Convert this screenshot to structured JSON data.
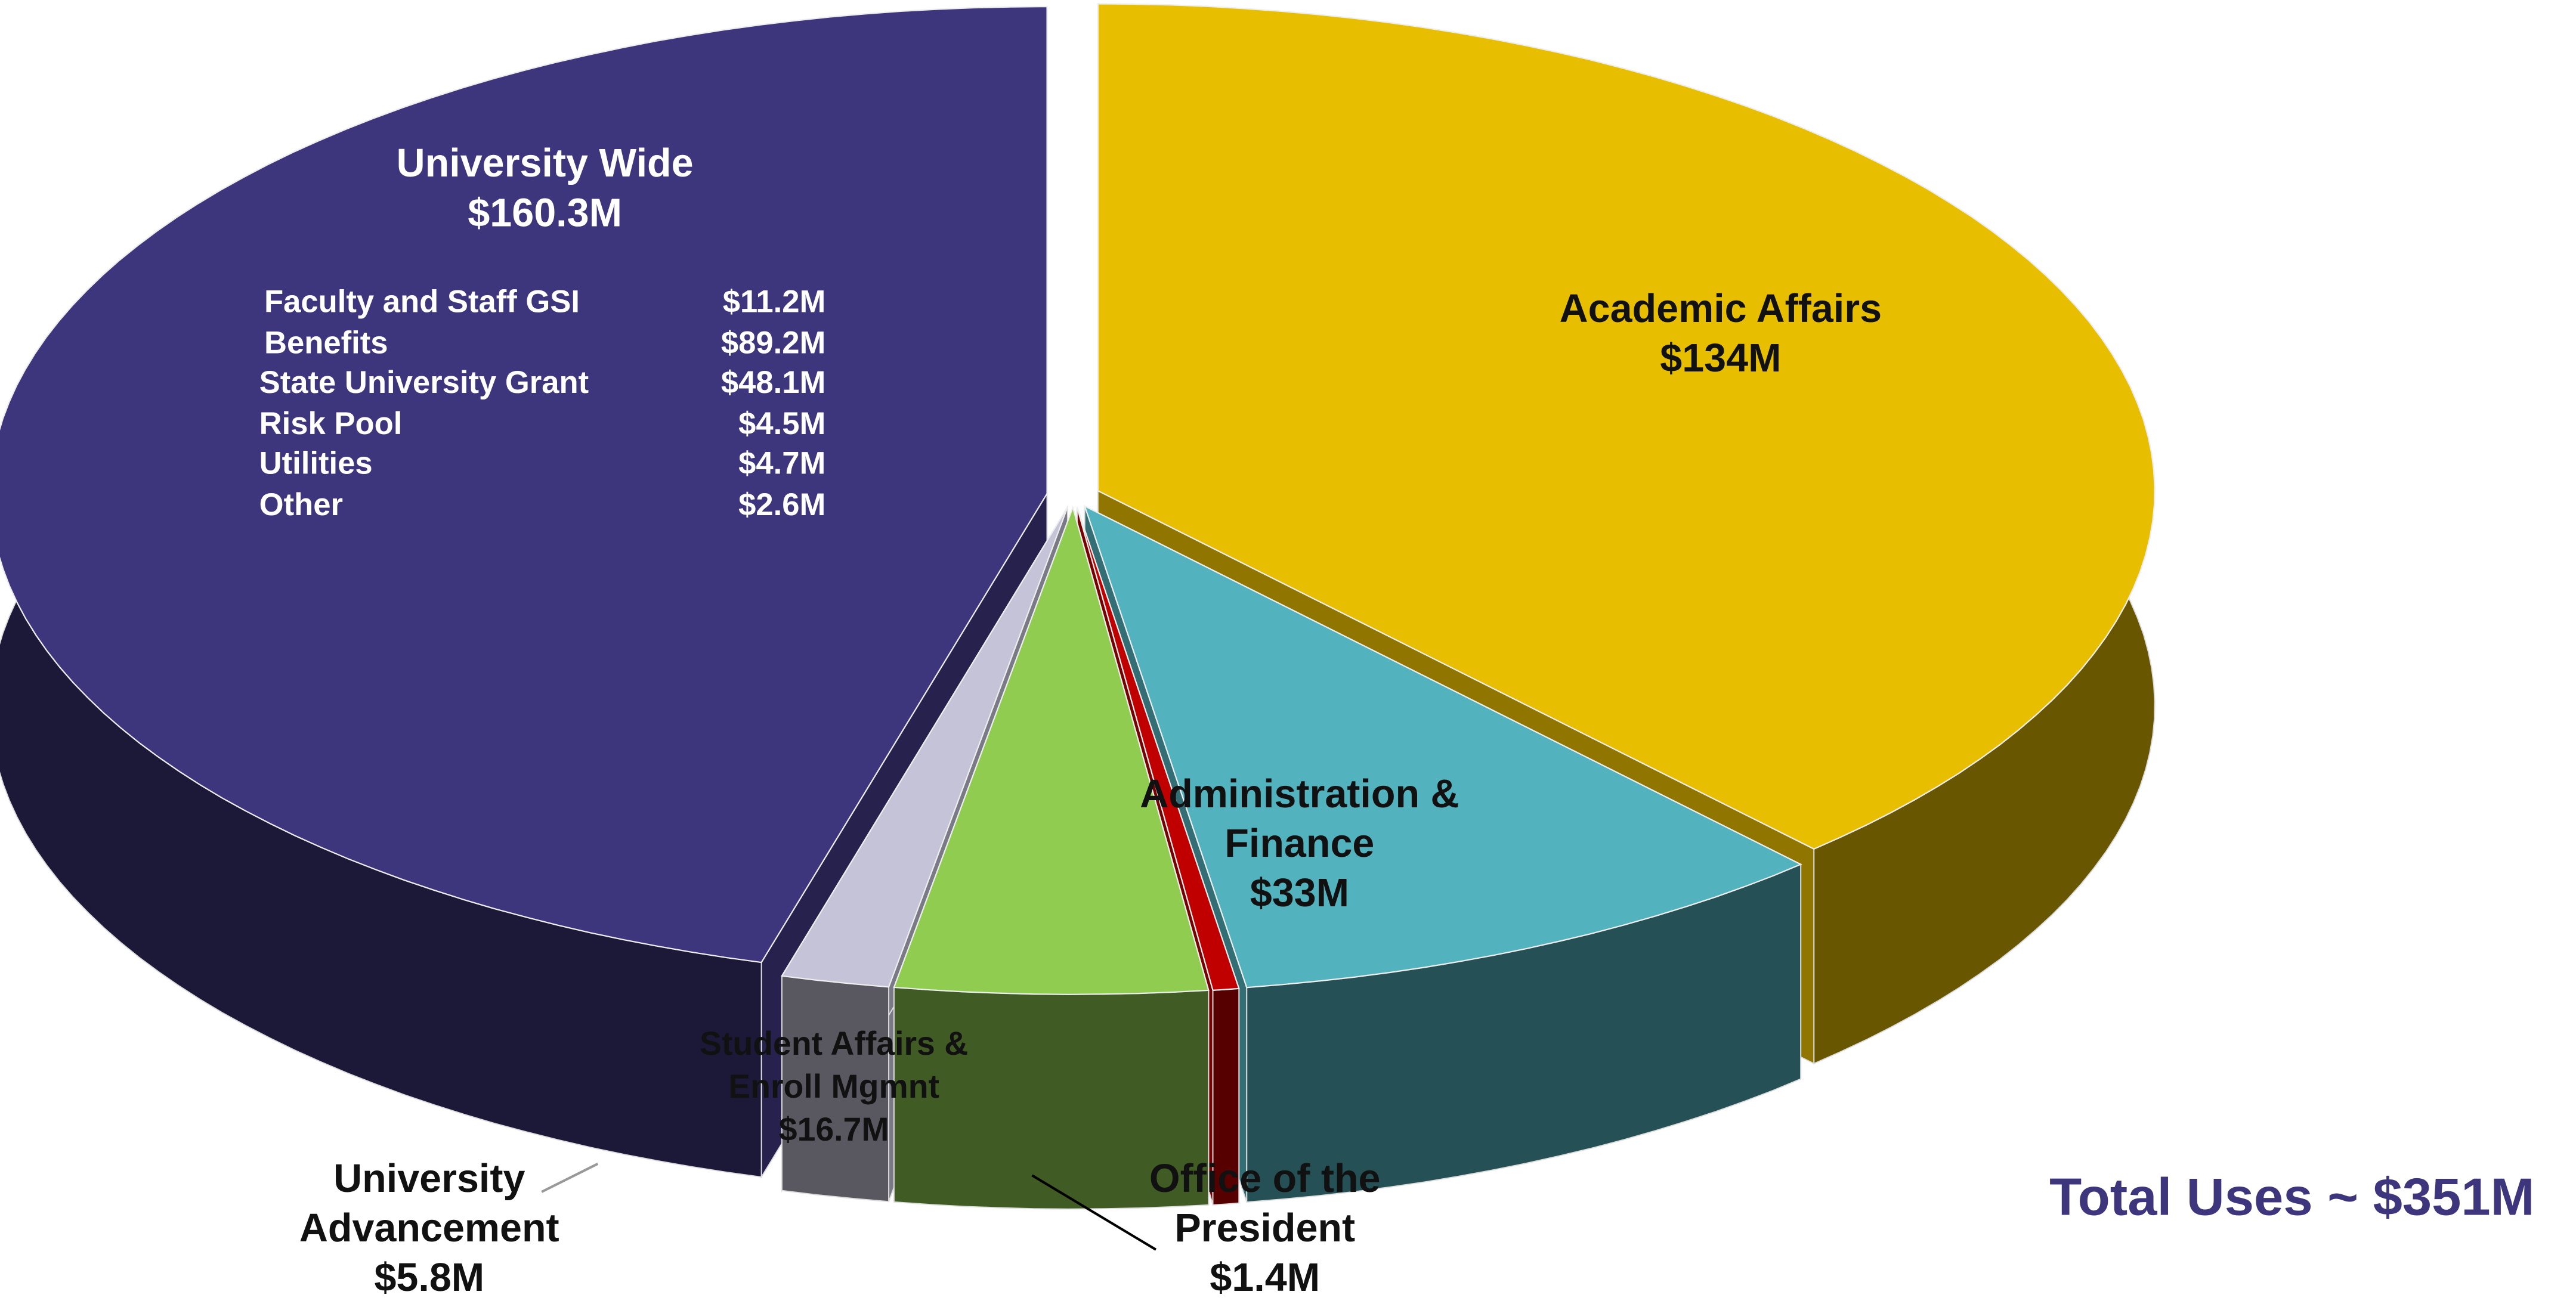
{
  "chart_data": {
    "type": "pie",
    "categories": [
      "Academic Affairs",
      "Administration & Finance",
      "Office of the President",
      "Student Affairs & Enroll Mgmnt",
      "University Advancement",
      "University Wide"
    ],
    "values": [
      134,
      33,
      1.4,
      16.7,
      5.8,
      160.3
    ],
    "value_labels": [
      "$134M",
      "$33M",
      "$1.4M",
      "$16.7M",
      "$5.8M",
      "$160.3M"
    ],
    "colors": [
      "#e8bf00",
      "#52b2bd",
      "#c00000",
      "#8fcc50",
      "#c5c3d8",
      "#3e367c"
    ],
    "annotation": "Total Uses ~ $351M",
    "breakdown": [
      {
        "name": "Faculty and Staff GSI",
        "amount": "$11.2M"
      },
      {
        "name": "Benefits",
        "amount": "$89.2M"
      },
      {
        "name": "State University Grant",
        "amount": "$48.1M"
      },
      {
        "name": "Risk Pool",
        "amount": "$4.5M"
      },
      {
        "name": "Utilities",
        "amount": "$4.7M"
      },
      {
        "name": "Other",
        "amount": "$2.6M"
      }
    ]
  }
}
